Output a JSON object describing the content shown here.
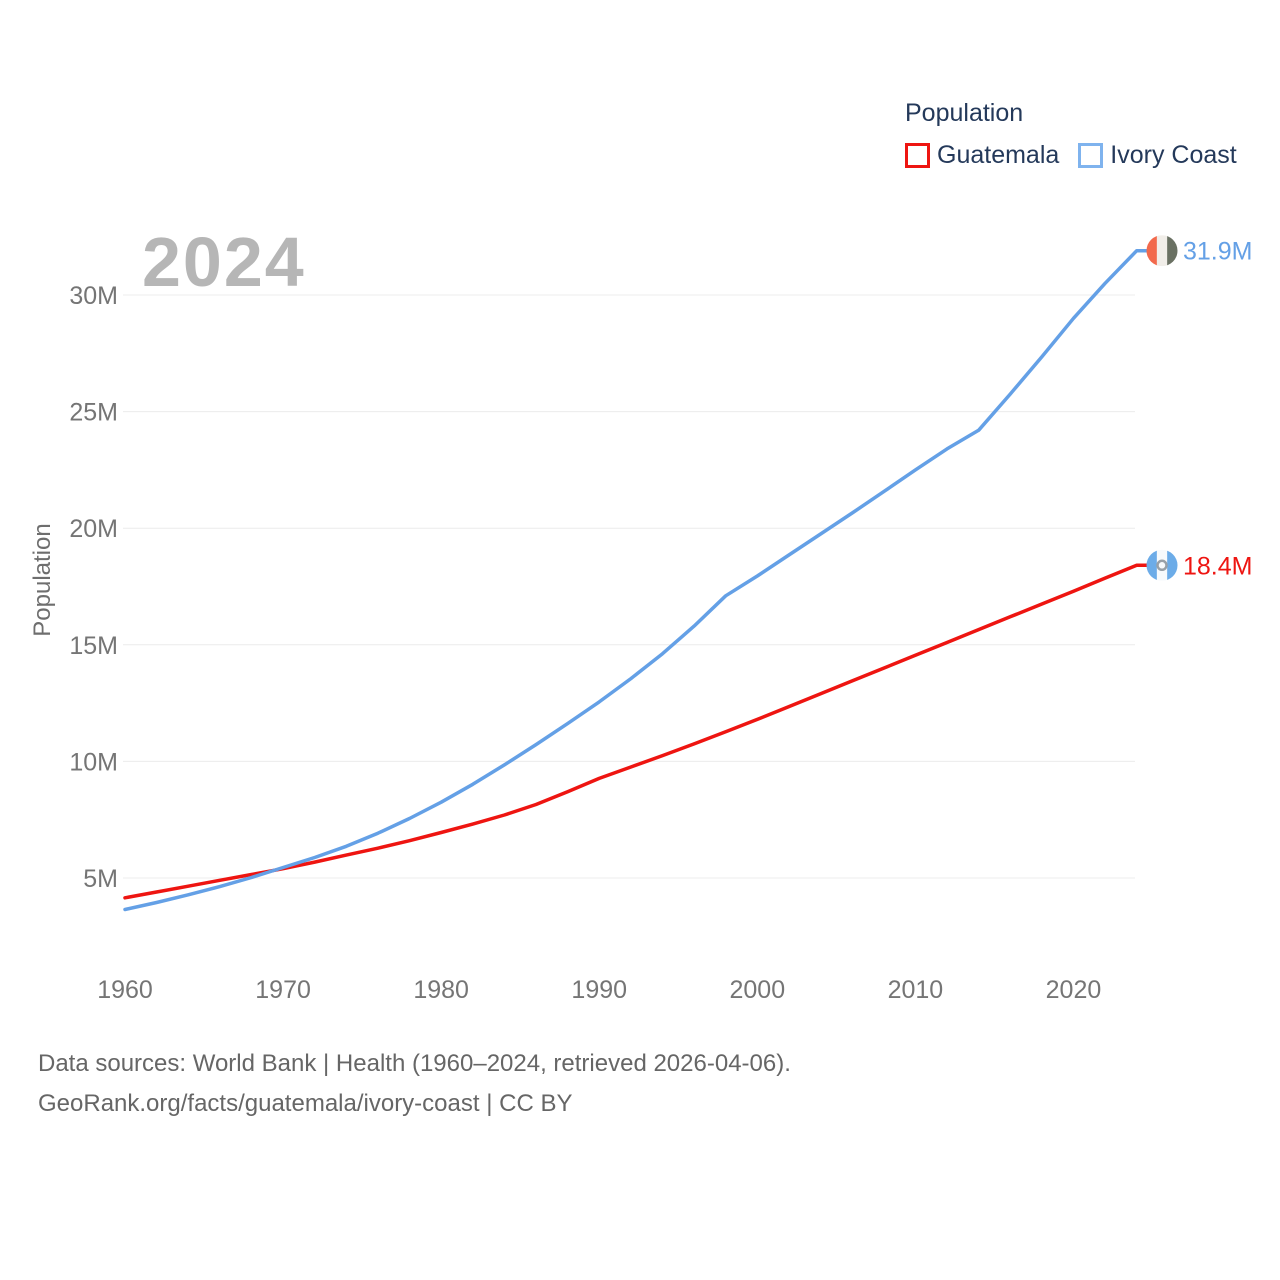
{
  "watermark": "2024",
  "legend": {
    "title": "Population",
    "items": [
      {
        "label": "Guatemala",
        "color": "#ee1511"
      },
      {
        "label": "Ivory Coast",
        "color": "#7fb3ee"
      }
    ]
  },
  "y_axis_title": "Population",
  "footer": {
    "line1": "Data sources: World Bank | Health (1960–2024, retrieved 2026-04-06).",
    "line2": "GeoRank.org/facts/guatemala/ivory-coast | CC BY"
  },
  "chart_data": {
    "type": "line",
    "title": "Population",
    "xlabel": "",
    "ylabel": "Population",
    "grid": true,
    "legend_position": "top-right",
    "x": [
      1960,
      1962,
      1964,
      1966,
      1968,
      1970,
      1972,
      1974,
      1976,
      1978,
      1980,
      1982,
      1984,
      1986,
      1988,
      1990,
      1992,
      1994,
      1996,
      1998,
      2000,
      2002,
      2004,
      2006,
      2008,
      2010,
      2012,
      2014,
      2016,
      2018,
      2020,
      2022,
      2024
    ],
    "x_ticks": [
      1960,
      1970,
      1980,
      1990,
      2000,
      2010,
      2020
    ],
    "y_tick_values": [
      5,
      10,
      15,
      20,
      25,
      30
    ],
    "y_tick_labels": [
      "5M",
      "10M",
      "15M",
      "20M",
      "25M",
      "30M"
    ],
    "ylim": [
      3.5,
      33
    ],
    "xlim": [
      1960,
      2024
    ],
    "series": [
      {
        "name": "Guatemala",
        "color": "#ee1511",
        "end_label": "18.4M",
        "end_label_color": "#ee1511",
        "flag": "guatemala",
        "flag_stripes": [
          "#6cace8",
          "#f7fafc",
          "#6cace8"
        ],
        "flag_emblem_color": "#99a1a8",
        "values": [
          4.15,
          4.4,
          4.65,
          4.9,
          5.15,
          5.4,
          5.68,
          5.98,
          6.28,
          6.6,
          6.95,
          7.31,
          7.7,
          8.15,
          8.7,
          9.27,
          9.76,
          10.25,
          10.75,
          11.27,
          11.8,
          12.35,
          12.9,
          13.45,
          14.0,
          14.55,
          15.1,
          15.65,
          16.2,
          16.75,
          17.3,
          17.86,
          18.41
        ]
      },
      {
        "name": "Ivory Coast",
        "color": "#64a0e6",
        "end_label": "31.9M",
        "end_label_color": "#64a0e6",
        "flag": "ivory-coast",
        "flag_stripes": [
          "#f2694c",
          "#f1eee9",
          "#6a7163"
        ],
        "flag_emblem_color": "",
        "values": [
          3.65,
          3.95,
          4.28,
          4.63,
          5.02,
          5.45,
          5.88,
          6.36,
          6.92,
          7.55,
          8.25,
          9.02,
          9.85,
          10.72,
          11.62,
          12.55,
          13.55,
          14.62,
          15.8,
          17.1,
          17.95,
          18.85,
          19.75,
          20.65,
          21.57,
          22.5,
          23.4,
          24.2,
          25.75,
          27.35,
          29.0,
          30.5,
          31.9
        ]
      }
    ]
  }
}
